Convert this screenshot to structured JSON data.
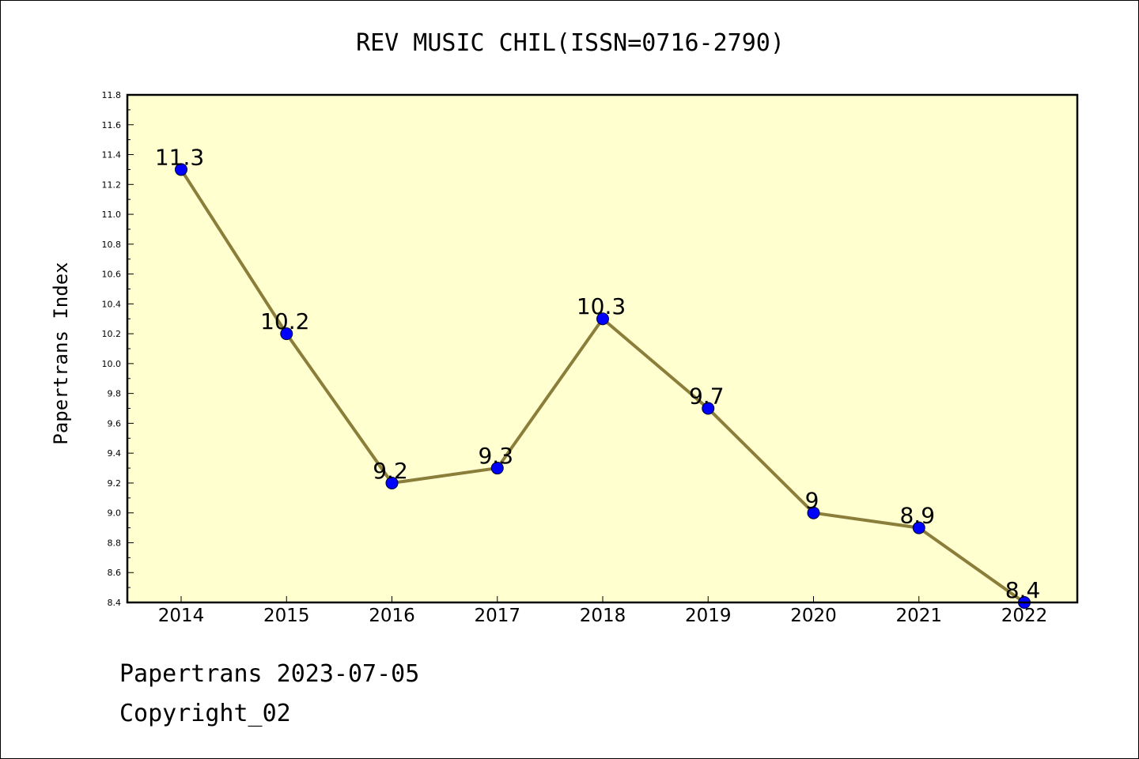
{
  "chart_data": {
    "type": "line",
    "title": "REV MUSIC CHIL(ISSN=0716-2790)",
    "ylabel": "Papertrans Index",
    "xlabel": "",
    "x": [
      "2014",
      "2015",
      "2016",
      "2017",
      "2018",
      "2019",
      "2020",
      "2021",
      "2022"
    ],
    "values": [
      11.3,
      10.2,
      9.2,
      9.3,
      10.3,
      9.7,
      9.0,
      8.9,
      8.4
    ],
    "data_labels": [
      "11.3",
      "10.2",
      "9.2",
      "9.3",
      "10.3",
      "9.7",
      "9",
      "8.9",
      "8.4"
    ],
    "ylim": [
      8.4,
      11.8
    ],
    "yticks": [
      "8.4",
      "8.6",
      "8.8",
      "9.0",
      "9.2",
      "9.4",
      "9.6",
      "9.8",
      "10.0",
      "10.2",
      "10.4",
      "10.6",
      "10.8",
      "11.0",
      "11.2",
      "11.4",
      "11.6",
      "11.8"
    ],
    "grid": false,
    "legend": "none",
    "colors": {
      "line": "#8b7d3a",
      "marker": "#0000ff",
      "plot_background": "#ffffd0"
    }
  },
  "footer": {
    "date": "Papertrans 2023-07-05",
    "copyright": "Copyright_02"
  }
}
